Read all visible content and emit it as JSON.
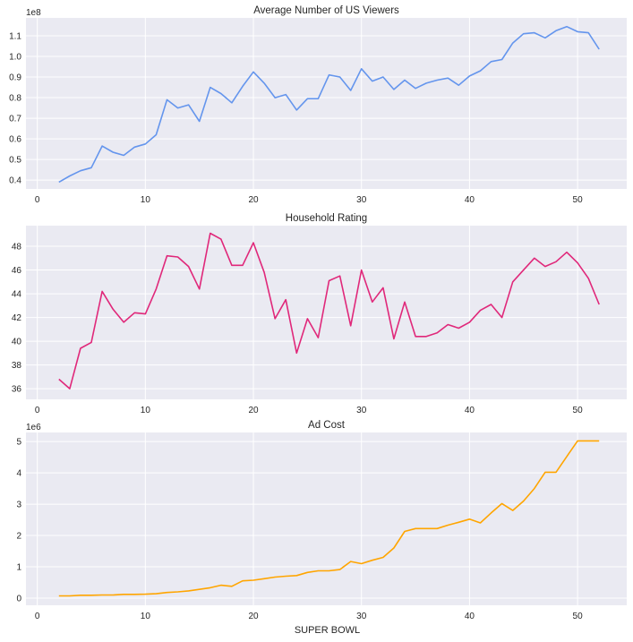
{
  "chart_data": [
    {
      "type": "line",
      "title": "Average Number of US Viewers",
      "xlabel": "",
      "ylabel": "",
      "offset_label": "1e8",
      "color": "#6495ED",
      "xlim": [
        -1.05,
        54.55
      ],
      "ylim": [
        0.357,
        1.187
      ],
      "xticks": [
        0,
        10,
        20,
        30,
        40,
        50
      ],
      "yticks": [
        0.4,
        0.5,
        0.6,
        0.7,
        0.8,
        0.9,
        1.0,
        1.1
      ],
      "ytick_labels": [
        "0.4",
        "0.5",
        "0.6",
        "0.7",
        "0.8",
        "0.9",
        "1.0",
        "1.1"
      ],
      "grid": true,
      "x": [
        2,
        3,
        4,
        5,
        6,
        7,
        8,
        9,
        10,
        11,
        12,
        13,
        14,
        15,
        16,
        17,
        18,
        19,
        20,
        21,
        22,
        23,
        24,
        25,
        26,
        27,
        28,
        29,
        30,
        31,
        32,
        33,
        34,
        35,
        36,
        37,
        38,
        39,
        40,
        41,
        42,
        43,
        44,
        45,
        46,
        47,
        48,
        49,
        50,
        51,
        52
      ],
      "y": [
        0.39,
        0.42,
        0.445,
        0.46,
        0.565,
        0.535,
        0.52,
        0.56,
        0.575,
        0.62,
        0.79,
        0.75,
        0.765,
        0.685,
        0.85,
        0.82,
        0.775,
        0.855,
        0.925,
        0.87,
        0.8,
        0.815,
        0.74,
        0.795,
        0.795,
        0.91,
        0.9,
        0.835,
        0.94,
        0.88,
        0.9,
        0.84,
        0.885,
        0.845,
        0.87,
        0.885,
        0.895,
        0.86,
        0.905,
        0.93,
        0.975,
        0.985,
        1.065,
        1.11,
        1.115,
        1.09,
        1.125,
        1.145,
        1.12,
        1.115,
        1.035
      ]
    },
    {
      "type": "line",
      "title": "Household Rating",
      "xlabel": "",
      "ylabel": "",
      "offset_label": "",
      "color": "#E0287A",
      "xlim": [
        -1.05,
        54.55
      ],
      "ylim": [
        35.1,
        49.74
      ],
      "xticks": [
        0,
        10,
        20,
        30,
        40,
        50
      ],
      "yticks": [
        36,
        38,
        40,
        42,
        44,
        46,
        48
      ],
      "ytick_labels": [
        "36",
        "38",
        "40",
        "42",
        "44",
        "46",
        "48"
      ],
      "grid": true,
      "x": [
        2,
        3,
        4,
        5,
        6,
        7,
        8,
        9,
        10,
        11,
        12,
        13,
        14,
        15,
        16,
        17,
        18,
        19,
        20,
        21,
        22,
        23,
        24,
        25,
        26,
        27,
        28,
        29,
        30,
        31,
        32,
        33,
        34,
        35,
        36,
        37,
        38,
        39,
        40,
        41,
        42,
        43,
        44,
        45,
        46,
        47,
        48,
        49,
        50,
        51,
        52
      ],
      "y": [
        36.8,
        36.0,
        39.4,
        39.9,
        44.2,
        42.7,
        41.6,
        42.4,
        42.3,
        44.4,
        47.2,
        47.1,
        46.3,
        44.4,
        49.1,
        48.6,
        46.4,
        46.4,
        48.3,
        45.8,
        41.9,
        43.5,
        39.0,
        41.9,
        40.3,
        45.1,
        45.5,
        41.3,
        46.0,
        43.3,
        44.5,
        40.2,
        43.3,
        40.4,
        40.4,
        40.7,
        41.4,
        41.1,
        41.6,
        42.6,
        43.1,
        42.0,
        45.0,
        46.0,
        47.0,
        46.3,
        46.7,
        47.5,
        46.6,
        45.3,
        43.1
      ]
    },
    {
      "type": "line",
      "title": "Ad Cost",
      "xlabel": "SUPER BOWL",
      "ylabel": "",
      "offset_label": "1e6",
      "color": "#FFA500",
      "xlim": [
        -1.05,
        54.55
      ],
      "ylim": [
        -0.23,
        5.29
      ],
      "xticks": [
        0,
        10,
        20,
        30,
        40,
        50
      ],
      "yticks": [
        0,
        1,
        2,
        3,
        4,
        5
      ],
      "ytick_labels": [
        "0",
        "1",
        "2",
        "3",
        "4",
        "5"
      ],
      "grid": true,
      "x": [
        2,
        3,
        4,
        5,
        6,
        7,
        8,
        9,
        10,
        11,
        12,
        13,
        14,
        15,
        16,
        17,
        18,
        19,
        20,
        21,
        22,
        23,
        24,
        25,
        26,
        27,
        28,
        29,
        30,
        31,
        32,
        33,
        34,
        35,
        36,
        37,
        38,
        39,
        40,
        41,
        42,
        43,
        44,
        45,
        46,
        47,
        48,
        49,
        50,
        51,
        52
      ],
      "y": [
        0.07,
        0.07,
        0.09,
        0.09,
        0.1,
        0.1,
        0.12,
        0.12,
        0.125,
        0.14,
        0.18,
        0.2,
        0.23,
        0.28,
        0.33,
        0.41,
        0.375,
        0.55,
        0.57,
        0.62,
        0.67,
        0.7,
        0.72,
        0.82,
        0.87,
        0.87,
        0.91,
        1.17,
        1.1,
        1.21,
        1.3,
        1.6,
        2.13,
        2.22,
        2.22,
        2.22,
        2.33,
        2.42,
        2.52,
        2.4,
        2.72,
        3.02,
        2.8,
        3.1,
        3.5,
        4.02,
        4.02,
        4.52,
        5.02,
        5.02,
        5.02
      ]
    }
  ]
}
